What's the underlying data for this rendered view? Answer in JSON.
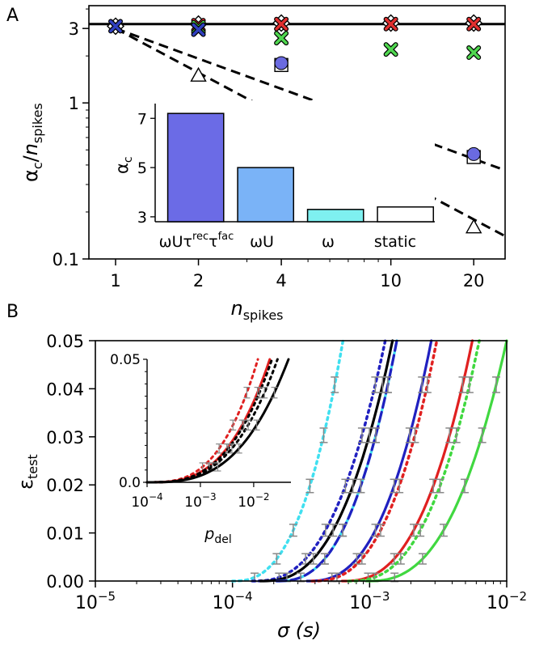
{
  "chart_data": [
    {
      "panel": "A",
      "type": "scatter",
      "xscale": "log",
      "yscale": "log",
      "xlabel": "n_spikes",
      "ylabel": "α_c/n_spikes",
      "xlim": [
        0.8,
        26
      ],
      "ylim": [
        0.1,
        4.2
      ],
      "xticks": [
        1,
        2,
        4,
        10,
        20
      ],
      "yticks": [
        0.1,
        1,
        3
      ],
      "lines": [
        {
          "style": "solid",
          "x": [
            0.8,
            26
          ],
          "y": [
            3.2,
            3.2
          ]
        },
        {
          "style": "dashed",
          "x": [
            1,
            26
          ],
          "y": [
            3.0,
            0.37
          ]
        },
        {
          "style": "dashed",
          "x": [
            1,
            26
          ],
          "y": [
            3.0,
            0.14
          ]
        }
      ],
      "series": [
        {
          "marker": "diamond",
          "x": [
            1,
            2,
            4,
            10,
            20
          ],
          "y": [
            3.1,
            3.2,
            3.25,
            3.25,
            3.25
          ]
        },
        {
          "marker": "x",
          "color": "#e03030",
          "x": [
            2,
            4,
            10,
            20
          ],
          "y": [
            3.15,
            3.2,
            3.2,
            3.2
          ]
        },
        {
          "marker": "x",
          "color": "#50d850",
          "x": [
            2,
            4,
            10,
            20
          ],
          "y": [
            3.05,
            2.6,
            2.2,
            2.1
          ]
        },
        {
          "marker": "x",
          "color": "#3040c0",
          "x": [
            1,
            2
          ],
          "y": [
            3.1,
            2.95
          ]
        },
        {
          "marker": "square",
          "x": [
            4,
            10,
            20
          ],
          "y": [
            1.75,
            0.68,
            0.45
          ]
        },
        {
          "marker": "circle",
          "color": "#6a6ae0",
          "x": [
            4,
            10,
            20
          ],
          "y": [
            1.8,
            0.7,
            0.47
          ]
        },
        {
          "marker": "triangle",
          "x": [
            2,
            4,
            10,
            20
          ],
          "y": [
            1.5,
            0.78,
            0.32,
            0.16
          ]
        }
      ],
      "inset": {
        "type": "bar",
        "ylabel": "α_c",
        "categories": [
          "ωUτ^rec τ^fac",
          "ωU",
          "ω",
          "static"
        ],
        "values": [
          7.2,
          5.0,
          3.3,
          3.4
        ],
        "colors": [
          "#6b6be6",
          "#7ab3f7",
          "#7ef0f0",
          "#ffffff"
        ],
        "ylim": [
          2.8,
          7.6
        ],
        "yticks": [
          3,
          5,
          7
        ]
      }
    },
    {
      "panel": "B",
      "type": "line",
      "xscale": "log",
      "xlabel": "σ (s)",
      "ylabel": "ε_test",
      "xlim": [
        1e-05,
        0.01
      ],
      "ylim": [
        0,
        0.05
      ],
      "xticks": [
        1e-05,
        0.0001,
        0.001,
        0.01
      ],
      "yticks": [
        0.0,
        0.01,
        0.02,
        0.03,
        0.04,
        0.05
      ],
      "series": [
        {
          "color": "#40e0f0",
          "style": "dotted",
          "x50": 0.00064,
          "x0": 0.0001
        },
        {
          "color": "#2020c0",
          "style": "dotted",
          "x50": 0.0013,
          "x0": 0.00014
        },
        {
          "color": "#000000",
          "style": "solid",
          "x50": 0.00147,
          "x0": 0.00016
        },
        {
          "color": "#40e0f0",
          "style": "solid",
          "x50": 0.00158,
          "x0": 0.00021
        },
        {
          "color": "#2020c0",
          "style": "dashed",
          "x50": 0.00158,
          "x0": 0.00021
        },
        {
          "color": "#2020c0",
          "style": "solid",
          "x50": 0.00282,
          "x0": 0.00035
        },
        {
          "color": "#e02020",
          "style": "dotted",
          "x50": 0.00309,
          "x0": 0.00038
        },
        {
          "color": "#e02020",
          "style": "solid",
          "x50": 0.00562,
          "x0": 0.00063
        },
        {
          "color": "#40d840",
          "style": "dotted",
          "x50": 0.00631,
          "x0": 0.0007
        },
        {
          "color": "#40d840",
          "style": "solid",
          "x50": 0.01,
          "x0": 0.00095
        }
      ],
      "inset": {
        "type": "line",
        "xscale": "log",
        "xlabel": "p_del",
        "xlim": [
          0.0001,
          0.05
        ],
        "ylim": [
          0,
          0.05
        ],
        "xticks": [
          0.0001,
          0.001,
          0.01
        ],
        "yticks": [
          0.0,
          0.05
        ],
        "series": [
          {
            "color": "#e02020",
            "style": "dotted",
            "x50": 0.012
          },
          {
            "color": "#e02020",
            "style": "solid",
            "x50": 0.02
          },
          {
            "color": "#000000",
            "style": "dotted",
            "x50": 0.022
          },
          {
            "color": "#000000",
            "style": "dotted",
            "x50": 0.028
          },
          {
            "color": "#000000",
            "style": "solid",
            "x50": 0.045
          }
        ]
      }
    }
  ],
  "labels": {
    "panel_a": "A",
    "panel_b": "B",
    "a_ylabel_alpha": "α",
    "a_ylabel_sub_c": "c",
    "a_ylabel_slash": "/",
    "a_ylabel_n": "n",
    "a_ylabel_sub_spikes": "spikes",
    "a_xlabel_n": "n",
    "a_xlabel_sub": "spikes",
    "a_xticks": [
      "1",
      "2",
      "4",
      "10",
      "20"
    ],
    "a_yticks": [
      "0.1",
      "1",
      "3"
    ],
    "inset_a_ylabel": "α",
    "inset_a_ylabel_sub": "c",
    "inset_a_yticks": [
      "3",
      "5",
      "7"
    ],
    "inset_a_cat1_main": "ωUτ",
    "inset_a_cat1_sup1": "rec",
    "inset_a_cat1_mid": "τ",
    "inset_a_cat1_sup2": "fac",
    "inset_a_cat2": "ωU",
    "inset_a_cat3": "ω",
    "inset_a_cat4": "static",
    "b_ylabel_eps": "ε",
    "b_ylabel_sub": "test",
    "b_xlabel": "σ (s)",
    "b_yticks": [
      "0.00",
      "0.01",
      "0.02",
      "0.03",
      "0.04",
      "0.05"
    ],
    "b_xtick_base": "10",
    "b_xtick_exps": [
      "−5",
      "−4",
      "−3",
      "−2"
    ],
    "inset_b_ytick_top": "0.05",
    "inset_b_ytick_bottom": "0.0",
    "inset_b_xtick_exps": [
      "−4",
      "−3",
      "−2"
    ],
    "inset_b_xlabel_p": "p",
    "inset_b_xlabel_sub": "del"
  }
}
